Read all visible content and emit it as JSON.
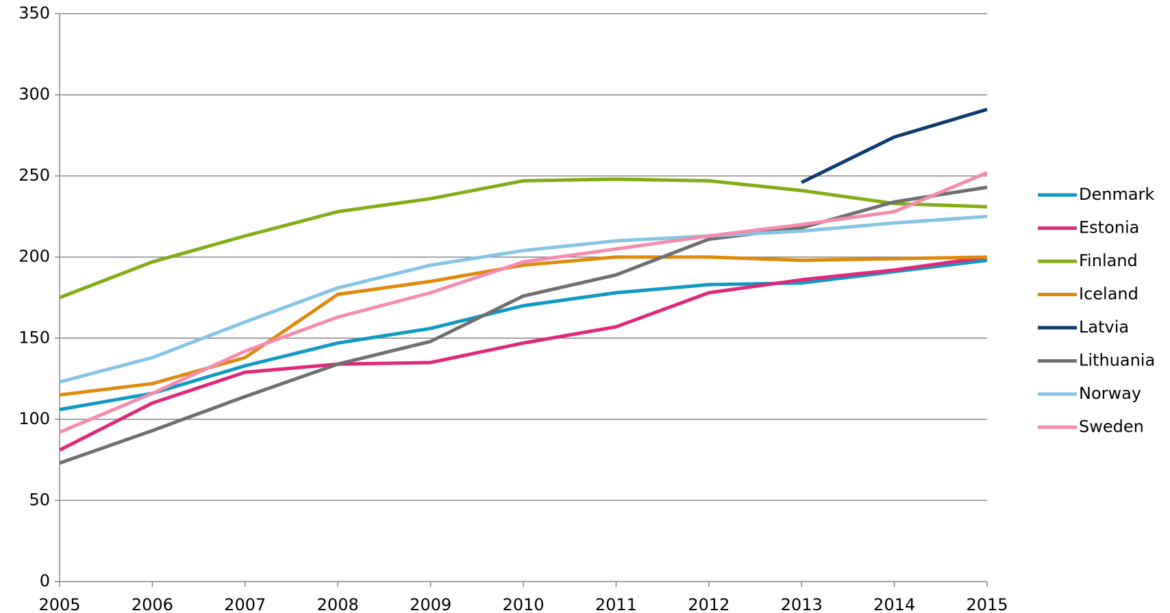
{
  "chart_data": {
    "type": "line",
    "x": [
      2005,
      2006,
      2007,
      2008,
      2009,
      2010,
      2011,
      2012,
      2013,
      2014,
      2015
    ],
    "xlim": [
      2005,
      2015
    ],
    "xticks": [
      2005,
      2006,
      2007,
      2008,
      2009,
      2010,
      2011,
      2012,
      2013,
      2014,
      2015
    ],
    "ylim": [
      0,
      350
    ],
    "yticks": [
      0,
      50,
      100,
      150,
      200,
      250,
      300,
      350
    ],
    "grid": true,
    "legend": "right",
    "series": [
      {
        "name": "Denmark",
        "color": "#0e9ac4",
        "values": [
          106,
          116,
          133,
          147,
          156,
          170,
          178,
          183,
          184,
          191,
          198
        ]
      },
      {
        "name": "Estonia",
        "color": "#e0287a",
        "values": [
          81,
          110,
          129,
          134,
          135,
          147,
          157,
          178,
          186,
          192,
          200
        ]
      },
      {
        "name": "Finland",
        "color": "#82ad16",
        "values": [
          175,
          197,
          213,
          228,
          236,
          247,
          248,
          247,
          241,
          233,
          231
        ]
      },
      {
        "name": "Iceland",
        "color": "#e08a0c",
        "values": [
          115,
          122,
          138,
          177,
          185,
          195,
          200,
          200,
          198,
          199,
          200
        ]
      },
      {
        "name": "Latvia",
        "color": "#0c3b6e",
        "values": [
          null,
          null,
          null,
          null,
          null,
          null,
          null,
          null,
          246,
          274,
          291
        ]
      },
      {
        "name": "Lithuania",
        "color": "#6f6f6f",
        "values": [
          73,
          93,
          114,
          134,
          148,
          176,
          189,
          211,
          218,
          234,
          243
        ]
      },
      {
        "name": "Norway",
        "color": "#84c4e6",
        "values": [
          123,
          138,
          160,
          181,
          195,
          204,
          210,
          213,
          216,
          221,
          225
        ]
      },
      {
        "name": "Sweden",
        "color": "#f68bb0",
        "values": [
          92,
          116,
          142,
          163,
          178,
          197,
          205,
          213,
          220,
          228,
          252
        ]
      }
    ]
  }
}
